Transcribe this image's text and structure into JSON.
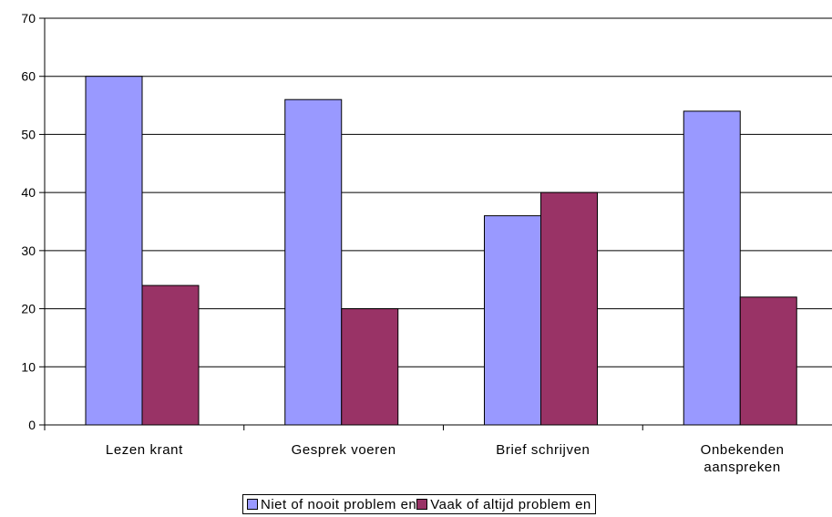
{
  "chart_data": {
    "type": "bar",
    "categories": [
      [
        "Lezen krant"
      ],
      [
        "Gesprek voeren"
      ],
      [
        "Brief schrijven"
      ],
      [
        "Onbekenden",
        "aanspreken"
      ]
    ],
    "series": [
      {
        "name": "Niet of nooit problemen",
        "values": [
          60,
          56,
          36,
          54
        ],
        "color": "#9999ff"
      },
      {
        "name": "Vaak of altijd problemen",
        "values": [
          24,
          20,
          40,
          22
        ],
        "color": "#993366"
      }
    ],
    "ylim": [
      0,
      70
    ],
    "yticks": [
      0,
      10,
      20,
      30,
      40,
      50,
      60,
      70
    ],
    "grid": true,
    "legend_position": "bottom"
  },
  "legend": {
    "items": [
      {
        "label": "Niet of nooit problem en",
        "color": "#9999ff"
      },
      {
        "label": "Vaak of altijd problem en",
        "color": "#993366"
      }
    ]
  }
}
